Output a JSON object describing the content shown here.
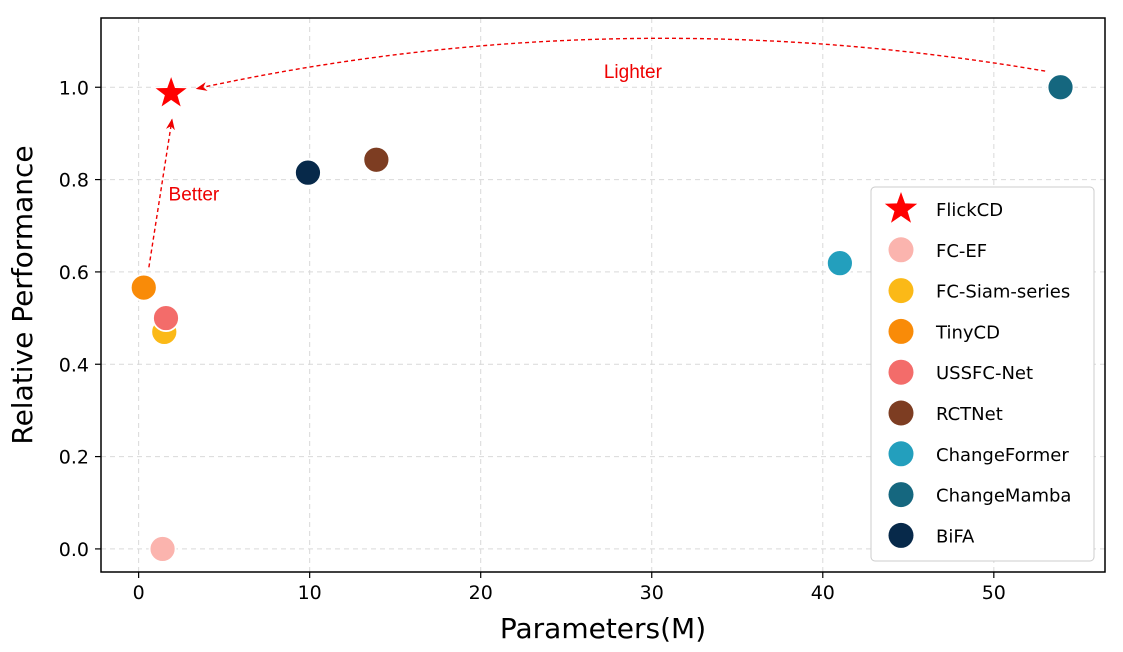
{
  "chart_data": {
    "type": "scatter",
    "title": "",
    "xlabel": "Parameters(M)",
    "ylabel": "Relative Performance",
    "xlim": [
      -2.2,
      56.5
    ],
    "ylim": [
      -0.05,
      1.15
    ],
    "xticks": [
      0,
      10,
      20,
      30,
      40,
      50
    ],
    "yticks": [
      0.0,
      0.2,
      0.4,
      0.6,
      0.8,
      1.0
    ],
    "xtick_labels": [
      "0",
      "10",
      "20",
      "30",
      "40",
      "50"
    ],
    "ytick_labels": [
      "0.0",
      "0.2",
      "0.4",
      "0.6",
      "0.8",
      "1.0"
    ],
    "grid": true,
    "legend_position": "right",
    "series": [
      {
        "name": "FlickCD",
        "marker": "star",
        "color": "#ff0000",
        "x": [
          1.9
        ],
        "y": [
          0.987
        ]
      },
      {
        "name": "FC-EF",
        "marker": "circle",
        "color": "#fbb4ae",
        "x": [
          1.4
        ],
        "y": [
          0.0
        ]
      },
      {
        "name": "FC-Siam-series",
        "marker": "circle",
        "color": "#fbb917",
        "x": [
          1.5
        ],
        "y": [
          0.47
        ]
      },
      {
        "name": "TinyCD",
        "marker": "circle",
        "color": "#f98b08",
        "x": [
          0.3
        ],
        "y": [
          0.566
        ]
      },
      {
        "name": "USSFC-Net",
        "marker": "circle",
        "color": "#f36c6a",
        "x": [
          1.6
        ],
        "y": [
          0.5
        ]
      },
      {
        "name": "RCTNet",
        "marker": "circle",
        "color": "#7d3d22",
        "x": [
          13.9
        ],
        "y": [
          0.843
        ]
      },
      {
        "name": "ChangeFormer",
        "marker": "circle",
        "color": "#239fbd",
        "x": [
          41.0
        ],
        "y": [
          0.619
        ]
      },
      {
        "name": "ChangeMamba",
        "marker": "circle",
        "color": "#15677f",
        "x": [
          53.9
        ],
        "y": [
          1.0
        ]
      },
      {
        "name": "BiFA",
        "marker": "circle",
        "color": "#07294a",
        "x": [
          9.9
        ],
        "y": [
          0.815
        ]
      }
    ],
    "annotations": [
      {
        "text": "Better",
        "color": "#ee0000",
        "arrow_from": [
          0.6,
          0.61
        ],
        "arrow_to": [
          1.95,
          0.93
        ],
        "text_at": [
          1.75,
          0.77
        ]
      },
      {
        "text": "Lighter",
        "color": "#ee0000",
        "arrow_from": [
          53.0,
          1.035
        ],
        "arrow_to": [
          3.4,
          0.997
        ],
        "arrow_peak": [
          28.0,
          1.105
        ],
        "text_at": [
          27.2,
          1.035
        ]
      }
    ]
  }
}
